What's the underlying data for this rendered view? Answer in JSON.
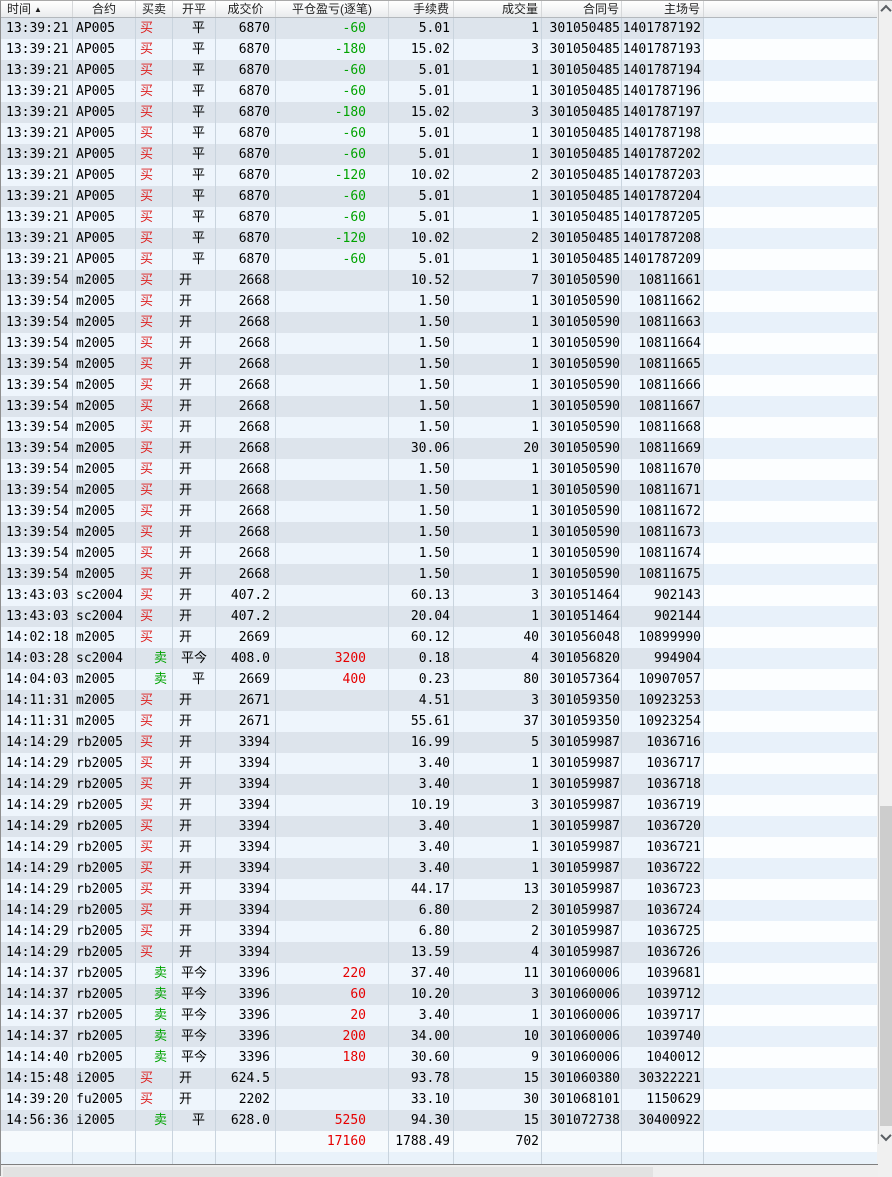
{
  "header": {
    "sort_arrow": "▲",
    "columns": [
      {
        "key": "time",
        "label": "时间"
      },
      {
        "key": "contract",
        "label": "合约"
      },
      {
        "key": "bs",
        "label": "买卖"
      },
      {
        "key": "oc",
        "label": "开平"
      },
      {
        "key": "price",
        "label": "成交价"
      },
      {
        "key": "pnl",
        "label": "平仓盈亏(逐笔)"
      },
      {
        "key": "fee",
        "label": "手续费"
      },
      {
        "key": "vol",
        "label": "成交量"
      },
      {
        "key": "order_no",
        "label": "合同号"
      },
      {
        "key": "main_no",
        "label": "主场号"
      }
    ]
  },
  "colors": {
    "buy_red": "#dd2020",
    "sell_green": "#00a300",
    "pnl_profit_red": "#e60000",
    "pnl_loss_green": "#00a300",
    "row_stripe_dark": "#dde4ec",
    "row_stripe_light": "#eef5fc"
  },
  "rows": [
    {
      "time": "13:39:21",
      "contract": "AP005",
      "bs": "买",
      "oc": "平",
      "price": "6870",
      "pnl": "-60",
      "fee": "5.01",
      "vol": "1",
      "order_no": "301050485",
      "main_no": "1401787192"
    },
    {
      "time": "13:39:21",
      "contract": "AP005",
      "bs": "买",
      "oc": "平",
      "price": "6870",
      "pnl": "-180",
      "fee": "15.02",
      "vol": "3",
      "order_no": "301050485",
      "main_no": "1401787193"
    },
    {
      "time": "13:39:21",
      "contract": "AP005",
      "bs": "买",
      "oc": "平",
      "price": "6870",
      "pnl": "-60",
      "fee": "5.01",
      "vol": "1",
      "order_no": "301050485",
      "main_no": "1401787194"
    },
    {
      "time": "13:39:21",
      "contract": "AP005",
      "bs": "买",
      "oc": "平",
      "price": "6870",
      "pnl": "-60",
      "fee": "5.01",
      "vol": "1",
      "order_no": "301050485",
      "main_no": "1401787196"
    },
    {
      "time": "13:39:21",
      "contract": "AP005",
      "bs": "买",
      "oc": "平",
      "price": "6870",
      "pnl": "-180",
      "fee": "15.02",
      "vol": "3",
      "order_no": "301050485",
      "main_no": "1401787197"
    },
    {
      "time": "13:39:21",
      "contract": "AP005",
      "bs": "买",
      "oc": "平",
      "price": "6870",
      "pnl": "-60",
      "fee": "5.01",
      "vol": "1",
      "order_no": "301050485",
      "main_no": "1401787198"
    },
    {
      "time": "13:39:21",
      "contract": "AP005",
      "bs": "买",
      "oc": "平",
      "price": "6870",
      "pnl": "-60",
      "fee": "5.01",
      "vol": "1",
      "order_no": "301050485",
      "main_no": "1401787202"
    },
    {
      "time": "13:39:21",
      "contract": "AP005",
      "bs": "买",
      "oc": "平",
      "price": "6870",
      "pnl": "-120",
      "fee": "10.02",
      "vol": "2",
      "order_no": "301050485",
      "main_no": "1401787203"
    },
    {
      "time": "13:39:21",
      "contract": "AP005",
      "bs": "买",
      "oc": "平",
      "price": "6870",
      "pnl": "-60",
      "fee": "5.01",
      "vol": "1",
      "order_no": "301050485",
      "main_no": "1401787204"
    },
    {
      "time": "13:39:21",
      "contract": "AP005",
      "bs": "买",
      "oc": "平",
      "price": "6870",
      "pnl": "-60",
      "fee": "5.01",
      "vol": "1",
      "order_no": "301050485",
      "main_no": "1401787205"
    },
    {
      "time": "13:39:21",
      "contract": "AP005",
      "bs": "买",
      "oc": "平",
      "price": "6870",
      "pnl": "-120",
      "fee": "10.02",
      "vol": "2",
      "order_no": "301050485",
      "main_no": "1401787208"
    },
    {
      "time": "13:39:21",
      "contract": "AP005",
      "bs": "买",
      "oc": "平",
      "price": "6870",
      "pnl": "-60",
      "fee": "5.01",
      "vol": "1",
      "order_no": "301050485",
      "main_no": "1401787209"
    },
    {
      "time": "13:39:54",
      "contract": "m2005",
      "bs": "买",
      "oc": "开",
      "price": "2668",
      "pnl": "",
      "fee": "10.52",
      "vol": "7",
      "order_no": "301050590",
      "main_no": "10811661"
    },
    {
      "time": "13:39:54",
      "contract": "m2005",
      "bs": "买",
      "oc": "开",
      "price": "2668",
      "pnl": "",
      "fee": "1.50",
      "vol": "1",
      "order_no": "301050590",
      "main_no": "10811662"
    },
    {
      "time": "13:39:54",
      "contract": "m2005",
      "bs": "买",
      "oc": "开",
      "price": "2668",
      "pnl": "",
      "fee": "1.50",
      "vol": "1",
      "order_no": "301050590",
      "main_no": "10811663"
    },
    {
      "time": "13:39:54",
      "contract": "m2005",
      "bs": "买",
      "oc": "开",
      "price": "2668",
      "pnl": "",
      "fee": "1.50",
      "vol": "1",
      "order_no": "301050590",
      "main_no": "10811664"
    },
    {
      "time": "13:39:54",
      "contract": "m2005",
      "bs": "买",
      "oc": "开",
      "price": "2668",
      "pnl": "",
      "fee": "1.50",
      "vol": "1",
      "order_no": "301050590",
      "main_no": "10811665"
    },
    {
      "time": "13:39:54",
      "contract": "m2005",
      "bs": "买",
      "oc": "开",
      "price": "2668",
      "pnl": "",
      "fee": "1.50",
      "vol": "1",
      "order_no": "301050590",
      "main_no": "10811666"
    },
    {
      "time": "13:39:54",
      "contract": "m2005",
      "bs": "买",
      "oc": "开",
      "price": "2668",
      "pnl": "",
      "fee": "1.50",
      "vol": "1",
      "order_no": "301050590",
      "main_no": "10811667"
    },
    {
      "time": "13:39:54",
      "contract": "m2005",
      "bs": "买",
      "oc": "开",
      "price": "2668",
      "pnl": "",
      "fee": "1.50",
      "vol": "1",
      "order_no": "301050590",
      "main_no": "10811668"
    },
    {
      "time": "13:39:54",
      "contract": "m2005",
      "bs": "买",
      "oc": "开",
      "price": "2668",
      "pnl": "",
      "fee": "30.06",
      "vol": "20",
      "order_no": "301050590",
      "main_no": "10811669"
    },
    {
      "time": "13:39:54",
      "contract": "m2005",
      "bs": "买",
      "oc": "开",
      "price": "2668",
      "pnl": "",
      "fee": "1.50",
      "vol": "1",
      "order_no": "301050590",
      "main_no": "10811670"
    },
    {
      "time": "13:39:54",
      "contract": "m2005",
      "bs": "买",
      "oc": "开",
      "price": "2668",
      "pnl": "",
      "fee": "1.50",
      "vol": "1",
      "order_no": "301050590",
      "main_no": "10811671"
    },
    {
      "time": "13:39:54",
      "contract": "m2005",
      "bs": "买",
      "oc": "开",
      "price": "2668",
      "pnl": "",
      "fee": "1.50",
      "vol": "1",
      "order_no": "301050590",
      "main_no": "10811672"
    },
    {
      "time": "13:39:54",
      "contract": "m2005",
      "bs": "买",
      "oc": "开",
      "price": "2668",
      "pnl": "",
      "fee": "1.50",
      "vol": "1",
      "order_no": "301050590",
      "main_no": "10811673"
    },
    {
      "time": "13:39:54",
      "contract": "m2005",
      "bs": "买",
      "oc": "开",
      "price": "2668",
      "pnl": "",
      "fee": "1.50",
      "vol": "1",
      "order_no": "301050590",
      "main_no": "10811674"
    },
    {
      "time": "13:39:54",
      "contract": "m2005",
      "bs": "买",
      "oc": "开",
      "price": "2668",
      "pnl": "",
      "fee": "1.50",
      "vol": "1",
      "order_no": "301050590",
      "main_no": "10811675"
    },
    {
      "time": "13:43:03",
      "contract": "sc2004",
      "bs": "买",
      "oc": "开",
      "price": "407.2",
      "pnl": "",
      "fee": "60.13",
      "vol": "3",
      "order_no": "301051464",
      "main_no": "902143"
    },
    {
      "time": "13:43:03",
      "contract": "sc2004",
      "bs": "买",
      "oc": "开",
      "price": "407.2",
      "pnl": "",
      "fee": "20.04",
      "vol": "1",
      "order_no": "301051464",
      "main_no": "902144"
    },
    {
      "time": "14:02:18",
      "contract": "m2005",
      "bs": "买",
      "oc": "开",
      "price": "2669",
      "pnl": "",
      "fee": "60.12",
      "vol": "40",
      "order_no": "301056048",
      "main_no": "10899990"
    },
    {
      "time": "14:03:28",
      "contract": "sc2004",
      "bs": "卖",
      "oc": "平今",
      "price": "408.0",
      "pnl": "3200",
      "fee": "0.18",
      "vol": "4",
      "order_no": "301056820",
      "main_no": "994904"
    },
    {
      "time": "14:04:03",
      "contract": "m2005",
      "bs": "卖",
      "oc": "平",
      "price": "2669",
      "pnl": "400",
      "fee": "0.23",
      "vol": "80",
      "order_no": "301057364",
      "main_no": "10907057"
    },
    {
      "time": "14:11:31",
      "contract": "m2005",
      "bs": "买",
      "oc": "开",
      "price": "2671",
      "pnl": "",
      "fee": "4.51",
      "vol": "3",
      "order_no": "301059350",
      "main_no": "10923253"
    },
    {
      "time": "14:11:31",
      "contract": "m2005",
      "bs": "买",
      "oc": "开",
      "price": "2671",
      "pnl": "",
      "fee": "55.61",
      "vol": "37",
      "order_no": "301059350",
      "main_no": "10923254"
    },
    {
      "time": "14:14:29",
      "contract": "rb2005",
      "bs": "买",
      "oc": "开",
      "price": "3394",
      "pnl": "",
      "fee": "16.99",
      "vol": "5",
      "order_no": "301059987",
      "main_no": "1036716"
    },
    {
      "time": "14:14:29",
      "contract": "rb2005",
      "bs": "买",
      "oc": "开",
      "price": "3394",
      "pnl": "",
      "fee": "3.40",
      "vol": "1",
      "order_no": "301059987",
      "main_no": "1036717"
    },
    {
      "time": "14:14:29",
      "contract": "rb2005",
      "bs": "买",
      "oc": "开",
      "price": "3394",
      "pnl": "",
      "fee": "3.40",
      "vol": "1",
      "order_no": "301059987",
      "main_no": "1036718"
    },
    {
      "time": "14:14:29",
      "contract": "rb2005",
      "bs": "买",
      "oc": "开",
      "price": "3394",
      "pnl": "",
      "fee": "10.19",
      "vol": "3",
      "order_no": "301059987",
      "main_no": "1036719"
    },
    {
      "time": "14:14:29",
      "contract": "rb2005",
      "bs": "买",
      "oc": "开",
      "price": "3394",
      "pnl": "",
      "fee": "3.40",
      "vol": "1",
      "order_no": "301059987",
      "main_no": "1036720"
    },
    {
      "time": "14:14:29",
      "contract": "rb2005",
      "bs": "买",
      "oc": "开",
      "price": "3394",
      "pnl": "",
      "fee": "3.40",
      "vol": "1",
      "order_no": "301059987",
      "main_no": "1036721"
    },
    {
      "time": "14:14:29",
      "contract": "rb2005",
      "bs": "买",
      "oc": "开",
      "price": "3394",
      "pnl": "",
      "fee": "3.40",
      "vol": "1",
      "order_no": "301059987",
      "main_no": "1036722"
    },
    {
      "time": "14:14:29",
      "contract": "rb2005",
      "bs": "买",
      "oc": "开",
      "price": "3394",
      "pnl": "",
      "fee": "44.17",
      "vol": "13",
      "order_no": "301059987",
      "main_no": "1036723"
    },
    {
      "time": "14:14:29",
      "contract": "rb2005",
      "bs": "买",
      "oc": "开",
      "price": "3394",
      "pnl": "",
      "fee": "6.80",
      "vol": "2",
      "order_no": "301059987",
      "main_no": "1036724"
    },
    {
      "time": "14:14:29",
      "contract": "rb2005",
      "bs": "买",
      "oc": "开",
      "price": "3394",
      "pnl": "",
      "fee": "6.80",
      "vol": "2",
      "order_no": "301059987",
      "main_no": "1036725"
    },
    {
      "time": "14:14:29",
      "contract": "rb2005",
      "bs": "买",
      "oc": "开",
      "price": "3394",
      "pnl": "",
      "fee": "13.59",
      "vol": "4",
      "order_no": "301059987",
      "main_no": "1036726"
    },
    {
      "time": "14:14:37",
      "contract": "rb2005",
      "bs": "卖",
      "oc": "平今",
      "price": "3396",
      "pnl": "220",
      "fee": "37.40",
      "vol": "11",
      "order_no": "301060006",
      "main_no": "1039681"
    },
    {
      "time": "14:14:37",
      "contract": "rb2005",
      "bs": "卖",
      "oc": "平今",
      "price": "3396",
      "pnl": "60",
      "fee": "10.20",
      "vol": "3",
      "order_no": "301060006",
      "main_no": "1039712"
    },
    {
      "time": "14:14:37",
      "contract": "rb2005",
      "bs": "卖",
      "oc": "平今",
      "price": "3396",
      "pnl": "20",
      "fee": "3.40",
      "vol": "1",
      "order_no": "301060006",
      "main_no": "1039717"
    },
    {
      "time": "14:14:37",
      "contract": "rb2005",
      "bs": "卖",
      "oc": "平今",
      "price": "3396",
      "pnl": "200",
      "fee": "34.00",
      "vol": "10",
      "order_no": "301060006",
      "main_no": "1039740"
    },
    {
      "time": "14:14:40",
      "contract": "rb2005",
      "bs": "卖",
      "oc": "平今",
      "price": "3396",
      "pnl": "180",
      "fee": "30.60",
      "vol": "9",
      "order_no": "301060006",
      "main_no": "1040012"
    },
    {
      "time": "14:15:48",
      "contract": "i2005",
      "bs": "买",
      "oc": "开",
      "price": "624.5",
      "pnl": "",
      "fee": "93.78",
      "vol": "15",
      "order_no": "301060380",
      "main_no": "30322221"
    },
    {
      "time": "14:39:20",
      "contract": "fu2005",
      "bs": "买",
      "oc": "开",
      "price": "2202",
      "pnl": "",
      "fee": "33.10",
      "vol": "30",
      "order_no": "301068101",
      "main_no": "1150629"
    },
    {
      "time": "14:56:36",
      "contract": "i2005",
      "bs": "卖",
      "oc": "平",
      "price": "628.0",
      "pnl": "5250",
      "fee": "94.30",
      "vol": "15",
      "order_no": "301072738",
      "main_no": "30400922"
    }
  ],
  "totals": {
    "pnl": "17160",
    "fee": "1788.49",
    "vol": "702"
  }
}
